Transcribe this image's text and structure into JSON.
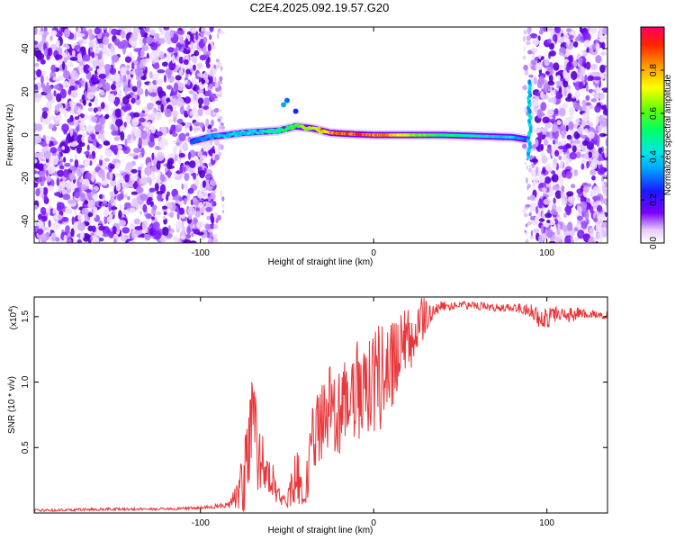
{
  "title": "C2E4.2025.092.19.57.G20",
  "chart_data": [
    {
      "type": "heatmap",
      "name": "spectrogram",
      "xlabel": "Height of straight line (km)",
      "ylabel": "Frequency (Hz)",
      "xlim": [
        -196,
        135
      ],
      "ylim": [
        -50,
        50
      ],
      "xticks": [
        -100,
        0,
        100
      ],
      "yticks": [
        -40,
        -20,
        0,
        20,
        40
      ],
      "colorbar": {
        "label": "Normalized spectral amplitude",
        "range": [
          0,
          1
        ],
        "ticks": [
          0.0,
          0.2,
          0.4,
          0.6,
          0.8
        ],
        "colors": [
          "#ffffff",
          "#6a00ff",
          "#0033ff",
          "#00ccff",
          "#00ff66",
          "#99ff00",
          "#ffff00",
          "#ff8800",
          "#ff0000",
          "#ff0066"
        ]
      },
      "noise_regions_x": [
        [
          -196,
          -92
        ],
        [
          92,
          135
        ]
      ],
      "signal_track": {
        "x": [
          -105,
          -95,
          -85,
          -75,
          -65,
          -55,
          -45,
          -35,
          -25,
          -15,
          0,
          20,
          40,
          60,
          80,
          88
        ],
        "y": [
          -3,
          -1,
          0,
          1,
          1.5,
          2,
          4,
          3,
          1,
          0.5,
          0,
          0,
          0,
          -0.5,
          -1,
          -2
        ],
        "amplitude": [
          0.3,
          0.35,
          0.4,
          0.4,
          0.45,
          0.5,
          0.6,
          0.7,
          0.85,
          0.95,
          0.9,
          0.7,
          0.55,
          0.45,
          0.4,
          0.3
        ]
      }
    },
    {
      "type": "line",
      "name": "snr",
      "xlabel": "Height of straight line (km)",
      "ylabel": "SNR (10 * v/v)",
      "y_multiplier_label": "(x10",
      "y_multiplier_exp": "4",
      "xlim": [
        -196,
        135
      ],
      "ylim": [
        0,
        1.65
      ],
      "xticks": [
        -100,
        0,
        100
      ],
      "yticks": [
        0.5,
        1.0,
        1.5
      ],
      "ytick_labels": [
        "0.5",
        "1.0",
        "1.5"
      ],
      "color": "#e8363a",
      "x": [
        -196,
        -150,
        -120,
        -100,
        -85,
        -78,
        -74,
        -70,
        -66,
        -62,
        -58,
        -54,
        -50,
        -45,
        -40,
        -35,
        -30,
        -25,
        -20,
        -15,
        -10,
        -5,
        0,
        5,
        10,
        15,
        20,
        25,
        30,
        35,
        40,
        45,
        50,
        60,
        70,
        80,
        90,
        95,
        100,
        105,
        110,
        115,
        120,
        125,
        135
      ],
      "y": [
        0.02,
        0.03,
        0.03,
        0.04,
        0.06,
        0.15,
        0.3,
        0.6,
        0.4,
        0.28,
        0.25,
        0.1,
        0.08,
        0.3,
        0.12,
        0.55,
        0.7,
        0.8,
        0.75,
        0.85,
        0.95,
        0.9,
        1.0,
        1.05,
        1.15,
        1.2,
        1.3,
        1.4,
        1.5,
        1.55,
        1.58,
        1.58,
        1.59,
        1.58,
        1.57,
        1.57,
        1.55,
        1.5,
        1.48,
        1.52,
        1.53,
        1.5,
        1.53,
        1.52,
        1.51
      ],
      "noise": [
        0.01,
        0.01,
        0.01,
        0.01,
        0.02,
        0.12,
        0.3,
        0.45,
        0.3,
        0.2,
        0.15,
        0.05,
        0.04,
        0.25,
        0.1,
        0.3,
        0.3,
        0.35,
        0.35,
        0.35,
        0.4,
        0.35,
        0.4,
        0.4,
        0.35,
        0.3,
        0.3,
        0.25,
        0.15,
        0.06,
        0.04,
        0.03,
        0.03,
        0.03,
        0.03,
        0.03,
        0.05,
        0.08,
        0.08,
        0.06,
        0.04,
        0.08,
        0.04,
        0.03,
        0.03
      ]
    }
  ]
}
